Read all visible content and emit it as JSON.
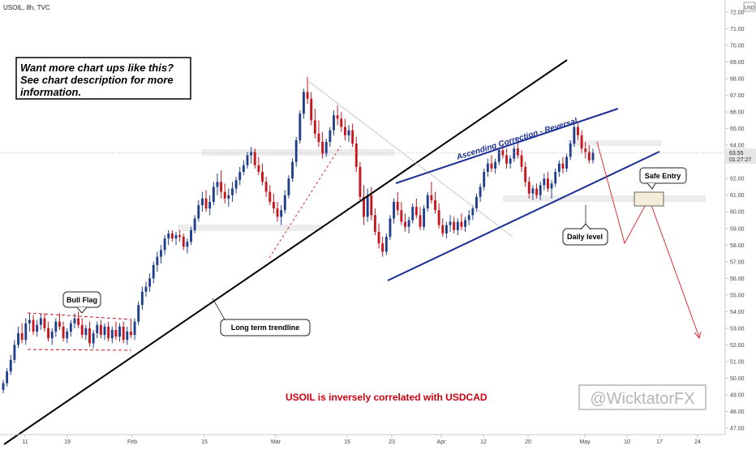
{
  "header": {
    "symbol_label": "USOIL, 8h, TVC"
  },
  "currency_badge": "USD",
  "price_tag": {
    "price": "63.55",
    "countdown": "01:27:27"
  },
  "chart_data": {
    "type": "candlestick",
    "timeframe": "8h",
    "ylim": [
      47,
      72.5
    ],
    "y_ticks": [
      "47.00",
      "48.00",
      "49.00",
      "50.00",
      "51.00",
      "52.00",
      "53.00",
      "54.00",
      "55.00",
      "56.00",
      "57.00",
      "58.00",
      "59.00",
      "60.00",
      "61.00",
      "62.00",
      "63.00",
      "64.00",
      "65.00",
      "66.00",
      "67.00",
      "68.00",
      "69.00",
      "70.00",
      "71.00",
      "72.00"
    ],
    "x_ticks": [
      "11",
      "19",
      "Feb",
      "15",
      "Mar",
      "15",
      "23",
      "Apr",
      "12",
      "20",
      "May",
      "10",
      "17",
      "24"
    ],
    "last_price": 63.55,
    "ohlc": [
      [
        49.3,
        49.9,
        49.1,
        49.7
      ],
      [
        49.7,
        50.6,
        49.5,
        50.4
      ],
      [
        50.4,
        51.4,
        50.2,
        51.1
      ],
      [
        51.1,
        52.3,
        50.9,
        52.0
      ],
      [
        52.0,
        53.1,
        51.8,
        52.7
      ],
      [
        52.7,
        53.3,
        52.1,
        52.3
      ],
      [
        52.3,
        53.6,
        52.0,
        53.3
      ],
      [
        53.3,
        53.9,
        52.8,
        53.5
      ],
      [
        53.5,
        53.8,
        52.6,
        52.8
      ],
      [
        52.8,
        53.5,
        52.5,
        53.2
      ],
      [
        53.2,
        53.9,
        52.9,
        53.6
      ],
      [
        53.6,
        53.9,
        52.8,
        53.0
      ],
      [
        53.0,
        53.4,
        52.2,
        52.4
      ],
      [
        52.4,
        53.0,
        52.0,
        52.8
      ],
      [
        52.8,
        53.6,
        52.5,
        53.4
      ],
      [
        53.4,
        53.9,
        52.9,
        53.1
      ],
      [
        53.1,
        53.4,
        52.2,
        52.4
      ],
      [
        52.4,
        53.0,
        52.1,
        52.8
      ],
      [
        52.8,
        53.5,
        52.5,
        53.3
      ],
      [
        53.3,
        53.9,
        53.0,
        53.6
      ],
      [
        53.6,
        54.0,
        53.0,
        53.2
      ],
      [
        53.2,
        53.6,
        52.4,
        52.6
      ],
      [
        52.6,
        53.2,
        52.3,
        53.0
      ],
      [
        53.0,
        53.4,
        51.9,
        52.1
      ],
      [
        52.1,
        52.9,
        51.8,
        52.7
      ],
      [
        52.7,
        53.4,
        52.4,
        53.2
      ],
      [
        53.2,
        53.5,
        52.4,
        52.6
      ],
      [
        52.6,
        53.3,
        52.3,
        53.1
      ],
      [
        53.1,
        53.4,
        52.2,
        52.4
      ],
      [
        52.4,
        53.1,
        52.1,
        52.9
      ],
      [
        52.9,
        53.4,
        52.3,
        52.5
      ],
      [
        52.5,
        53.3,
        52.2,
        53.1
      ],
      [
        53.1,
        53.4,
        52.1,
        52.3
      ],
      [
        52.3,
        53.1,
        52.0,
        52.8
      ],
      [
        52.8,
        53.5,
        52.4,
        52.6
      ],
      [
        52.6,
        53.6,
        52.3,
        53.4
      ],
      [
        53.4,
        54.6,
        53.2,
        54.4
      ],
      [
        54.4,
        55.5,
        54.1,
        55.2
      ],
      [
        55.2,
        55.8,
        54.9,
        55.5
      ],
      [
        55.5,
        56.3,
        55.2,
        56.0
      ],
      [
        56.0,
        57.0,
        55.7,
        56.8
      ],
      [
        56.8,
        57.6,
        56.4,
        57.3
      ],
      [
        57.3,
        58.0,
        56.9,
        57.7
      ],
      [
        57.7,
        58.6,
        57.4,
        58.4
      ],
      [
        58.4,
        58.9,
        58.0,
        58.7
      ],
      [
        58.7,
        58.9,
        58.2,
        58.4
      ],
      [
        58.4,
        58.8,
        58.0,
        58.6
      ],
      [
        58.6,
        58.9,
        58.2,
        58.5
      ],
      [
        58.5,
        58.7,
        57.7,
        57.9
      ],
      [
        57.9,
        58.4,
        57.5,
        58.2
      ],
      [
        58.2,
        59.1,
        58.0,
        58.9
      ],
      [
        58.9,
        59.8,
        58.7,
        59.6
      ],
      [
        59.6,
        60.7,
        59.4,
        60.4
      ],
      [
        60.4,
        61.2,
        60.0,
        60.8
      ],
      [
        60.8,
        61.3,
        60.0,
        60.2
      ],
      [
        60.2,
        61.0,
        59.8,
        60.6
      ],
      [
        60.6,
        61.8,
        60.4,
        61.5
      ],
      [
        61.5,
        62.3,
        61.0,
        61.8
      ],
      [
        61.8,
        62.5,
        60.8,
        61.2
      ],
      [
        61.2,
        61.7,
        60.5,
        60.8
      ],
      [
        60.8,
        61.4,
        60.3,
        61.0
      ],
      [
        61.0,
        61.8,
        60.6,
        61.4
      ],
      [
        61.4,
        62.1,
        61.1,
        61.9
      ],
      [
        61.9,
        62.7,
        61.6,
        62.4
      ],
      [
        62.4,
        63.1,
        62.2,
        62.8
      ],
      [
        62.8,
        63.6,
        62.6,
        63.4
      ],
      [
        63.4,
        63.9,
        62.9,
        63.6
      ],
      [
        63.6,
        63.8,
        62.6,
        62.8
      ],
      [
        62.8,
        63.3,
        62.2,
        62.4
      ],
      [
        62.4,
        62.9,
        61.6,
        61.8
      ],
      [
        61.8,
        62.1,
        60.9,
        61.2
      ],
      [
        61.2,
        61.6,
        60.4,
        60.6
      ],
      [
        60.6,
        61.1,
        59.9,
        60.2
      ],
      [
        60.2,
        60.6,
        59.4,
        59.7
      ],
      [
        59.7,
        60.4,
        59.2,
        60.1
      ],
      [
        60.1,
        61.3,
        59.9,
        61.0
      ],
      [
        61.0,
        62.2,
        60.8,
        62.0
      ],
      [
        62.0,
        63.2,
        61.8,
        63.0
      ],
      [
        63.0,
        64.5,
        62.7,
        64.3
      ],
      [
        64.3,
        66.1,
        64.1,
        65.9
      ],
      [
        65.9,
        67.4,
        65.6,
        67.2
      ],
      [
        67.2,
        68.1,
        66.5,
        66.8
      ],
      [
        66.8,
        67.2,
        65.2,
        65.5
      ],
      [
        65.5,
        66.2,
        64.4,
        64.7
      ],
      [
        64.7,
        65.5,
        63.9,
        64.2
      ],
      [
        64.2,
        64.8,
        63.2,
        63.5
      ],
      [
        63.5,
        64.4,
        63.3,
        64.2
      ],
      [
        64.2,
        65.1,
        63.9,
        64.9
      ],
      [
        64.9,
        66.1,
        64.6,
        65.8
      ],
      [
        65.8,
        66.4,
        65.2,
        65.6
      ],
      [
        65.6,
        66.0,
        64.8,
        65.1
      ],
      [
        65.1,
        65.6,
        64.3,
        64.6
      ],
      [
        64.6,
        65.2,
        64.2,
        64.9
      ],
      [
        64.9,
        65.3,
        63.9,
        64.1
      ],
      [
        64.1,
        64.5,
        62.4,
        62.7
      ],
      [
        62.7,
        63.0,
        60.6,
        60.9
      ],
      [
        60.9,
        61.6,
        59.2,
        59.7
      ],
      [
        59.7,
        61.4,
        59.4,
        61.0
      ],
      [
        61.0,
        61.5,
        59.5,
        59.8
      ],
      [
        59.8,
        60.2,
        58.6,
        58.8
      ],
      [
        58.8,
        59.3,
        57.8,
        58.1
      ],
      [
        58.1,
        58.5,
        57.3,
        57.6
      ],
      [
        57.6,
        58.7,
        57.4,
        58.5
      ],
      [
        58.5,
        59.8,
        58.3,
        59.6
      ],
      [
        59.6,
        60.8,
        59.3,
        60.6
      ],
      [
        60.6,
        61.2,
        59.8,
        60.1
      ],
      [
        60.1,
        60.6,
        59.2,
        59.4
      ],
      [
        59.4,
        59.9,
        58.8,
        59.1
      ],
      [
        59.1,
        59.7,
        58.7,
        59.5
      ],
      [
        59.5,
        60.5,
        59.3,
        60.3
      ],
      [
        60.3,
        60.8,
        59.6,
        59.8
      ],
      [
        59.8,
        60.3,
        58.9,
        59.1
      ],
      [
        59.1,
        60.4,
        58.9,
        60.2
      ],
      [
        60.2,
        61.2,
        60.0,
        61.0
      ],
      [
        61.0,
        61.8,
        60.5,
        60.7
      ],
      [
        60.7,
        61.2,
        59.9,
        60.1
      ],
      [
        60.1,
        60.5,
        59.0,
        59.2
      ],
      [
        59.2,
        59.6,
        58.5,
        58.7
      ],
      [
        58.7,
        59.4,
        58.4,
        59.2
      ],
      [
        59.2,
        59.8,
        58.8,
        59.4
      ],
      [
        59.4,
        59.7,
        58.7,
        58.9
      ],
      [
        58.9,
        59.6,
        58.6,
        59.4
      ],
      [
        59.4,
        59.9,
        58.9,
        59.1
      ],
      [
        59.1,
        59.7,
        58.8,
        59.5
      ],
      [
        59.5,
        60.1,
        59.2,
        59.8
      ],
      [
        59.8,
        60.4,
        59.5,
        60.2
      ],
      [
        60.2,
        61.1,
        60.0,
        60.9
      ],
      [
        60.9,
        61.7,
        60.6,
        61.5
      ],
      [
        61.5,
        62.6,
        61.3,
        62.4
      ],
      [
        62.4,
        63.2,
        62.1,
        62.9
      ],
      [
        62.9,
        63.4,
        62.4,
        62.6
      ],
      [
        62.6,
        63.2,
        62.3,
        63.0
      ],
      [
        63.0,
        63.9,
        62.8,
        63.7
      ],
      [
        63.7,
        64.1,
        63.2,
        63.4
      ],
      [
        63.4,
        63.8,
        62.6,
        62.9
      ],
      [
        62.9,
        63.4,
        62.6,
        63.2
      ],
      [
        63.2,
        64.0,
        63.0,
        63.8
      ],
      [
        63.8,
        64.2,
        63.2,
        63.4
      ],
      [
        63.4,
        63.7,
        62.4,
        62.7
      ],
      [
        62.7,
        63.0,
        61.5,
        61.8
      ],
      [
        61.8,
        62.1,
        60.8,
        61.1
      ],
      [
        61.1,
        61.6,
        60.7,
        61.4
      ],
      [
        61.4,
        61.7,
        60.8,
        61.0
      ],
      [
        61.0,
        61.8,
        60.7,
        61.6
      ],
      [
        61.6,
        62.3,
        61.3,
        62.0
      ],
      [
        62.0,
        62.4,
        61.2,
        61.4
      ],
      [
        61.4,
        61.9,
        60.8,
        61.7
      ],
      [
        61.7,
        62.6,
        61.5,
        62.4
      ],
      [
        62.4,
        63.1,
        62.1,
        62.9
      ],
      [
        62.9,
        63.3,
        62.3,
        62.6
      ],
      [
        62.6,
        63.5,
        62.4,
        63.3
      ],
      [
        63.3,
        64.3,
        63.1,
        64.1
      ],
      [
        64.1,
        65.3,
        63.9,
        65.1
      ],
      [
        65.1,
        65.4,
        64.3,
        64.6
      ],
      [
        64.6,
        64.9,
        63.5,
        63.8
      ],
      [
        63.8,
        64.2,
        63.2,
        63.6
      ],
      [
        63.6,
        64.0,
        62.9,
        63.1
      ],
      [
        63.1,
        63.8,
        62.9,
        63.55
      ]
    ]
  },
  "drawings": {
    "cta_box": {
      "line1": "Want more chart ups like this?",
      "line2": "See chart description for more",
      "line3": "information."
    },
    "bull_flag_label": "Bull Flag",
    "trendline_label": "Long term trendline",
    "channel_label": "Ascending Correction - Reversal",
    "safe_entry_label": "Safe Entry",
    "daily_level_label": "Daily level",
    "correlation_note": "USOIL is inversely correlated with USDCAD",
    "watermark": "@WicktatorFX"
  },
  "colors": {
    "bull": "#1f3f8c",
    "bear": "#c8161e",
    "channel": "#1b2f96",
    "note": "#d0000f",
    "zone": "#ececec"
  }
}
